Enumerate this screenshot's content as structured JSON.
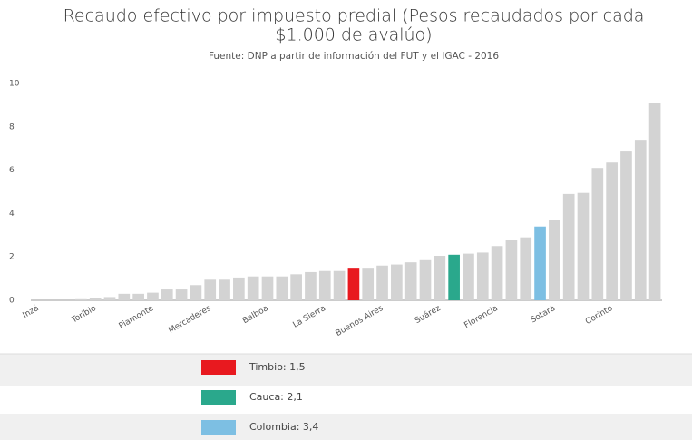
{
  "chart_data": {
    "type": "bar",
    "title": [
      "Recaudo efectivo por impuesto predial (Pesos recaudados por cada",
      "$1.000 de avalúo)"
    ],
    "subtitle": "Fuente: DNP a partir de información del FUT y el IGAC - 2016",
    "categories": [
      "Inzá",
      null,
      null,
      null,
      "Toribio",
      null,
      null,
      null,
      "Piamonte",
      null,
      null,
      null,
      "Mercaderes",
      null,
      null,
      null,
      "Balboa",
      null,
      null,
      null,
      "La Sierra",
      null,
      null,
      null,
      "Buenos Aires",
      null,
      null,
      null,
      "Suárez",
      null,
      null,
      null,
      "Florencia",
      null,
      null,
      null,
      "Sotará",
      null,
      null,
      null,
      "Corinto",
      null,
      null,
      null
    ],
    "values": [
      0,
      0,
      0,
      0.05,
      0.1,
      0.15,
      0.3,
      0.3,
      0.35,
      0.5,
      0.5,
      0.7,
      0.95,
      0.95,
      1.05,
      1.1,
      1.1,
      1.1,
      1.2,
      1.3,
      1.35,
      1.35,
      1.5,
      1.5,
      1.6,
      1.65,
      1.75,
      1.85,
      2.05,
      2.1,
      2.15,
      2.2,
      2.5,
      2.8,
      2.9,
      3.4,
      3.7,
      4.9,
      4.95,
      6.1,
      6.35,
      6.9,
      7.4,
      9.1
    ],
    "color": "#d3d3d3",
    "colors": [
      null,
      null,
      null,
      null,
      null,
      null,
      null,
      null,
      null,
      null,
      null,
      null,
      null,
      null,
      null,
      null,
      null,
      null,
      null,
      null,
      null,
      null,
      "#e8191f",
      null,
      null,
      null,
      null,
      null,
      null,
      "#2aa88c",
      null,
      null,
      null,
      null,
      null,
      "#7dbfe3",
      null,
      null,
      null,
      null,
      null,
      null,
      null,
      null
    ],
    "ylim": [
      0,
      10
    ],
    "yticks": [
      0,
      2,
      4,
      6,
      8,
      10
    ],
    "legend": [
      {
        "name": "Timbio: 1,5",
        "color": "#e8191f"
      },
      {
        "name": "Cauca: 2,1",
        "color": "#2aa88c"
      },
      {
        "name": "Colombia: 3,4",
        "color": "#7dbfe3"
      }
    ]
  }
}
